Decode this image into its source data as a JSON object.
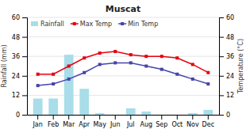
{
  "chart_data": {
    "type": "bar",
    "title": "Muscat",
    "categories": [
      "Jan",
      "Feb",
      "Mar",
      "Apr",
      "May",
      "Jun",
      "Jul",
      "Aug",
      "Sep",
      "Oct",
      "Nov",
      "Dec"
    ],
    "series": [
      {
        "name": "Rainfall",
        "type": "bar",
        "color": "#a8dde9",
        "values": [
          10,
          10,
          37,
          16,
          1,
          0,
          4,
          2,
          0,
          0,
          1,
          3
        ]
      },
      {
        "name": "Max Temp",
        "type": "line",
        "axis": "y2",
        "marker": "square",
        "color": "#e8000d",
        "values": [
          25,
          25,
          30,
          35,
          38,
          39,
          37,
          36,
          36,
          35,
          31,
          26
        ]
      },
      {
        "name": "Min Temp",
        "type": "line",
        "axis": "y2",
        "marker": "square",
        "color": "#4444aa",
        "values": [
          18,
          19,
          22,
          26,
          31,
          32,
          32,
          30,
          28,
          25,
          22,
          19
        ]
      }
    ],
    "ylabel": "Rainfall (mm)",
    "y2label": "Temperature (°C)",
    "ylim": [
      0,
      60
    ],
    "yticks": [
      0,
      12,
      24,
      36,
      48,
      60
    ],
    "y2lim": [
      0,
      60
    ],
    "y2ticks": [
      0,
      12,
      24,
      36,
      48,
      60
    ],
    "grid": true,
    "legend": "upper left"
  }
}
